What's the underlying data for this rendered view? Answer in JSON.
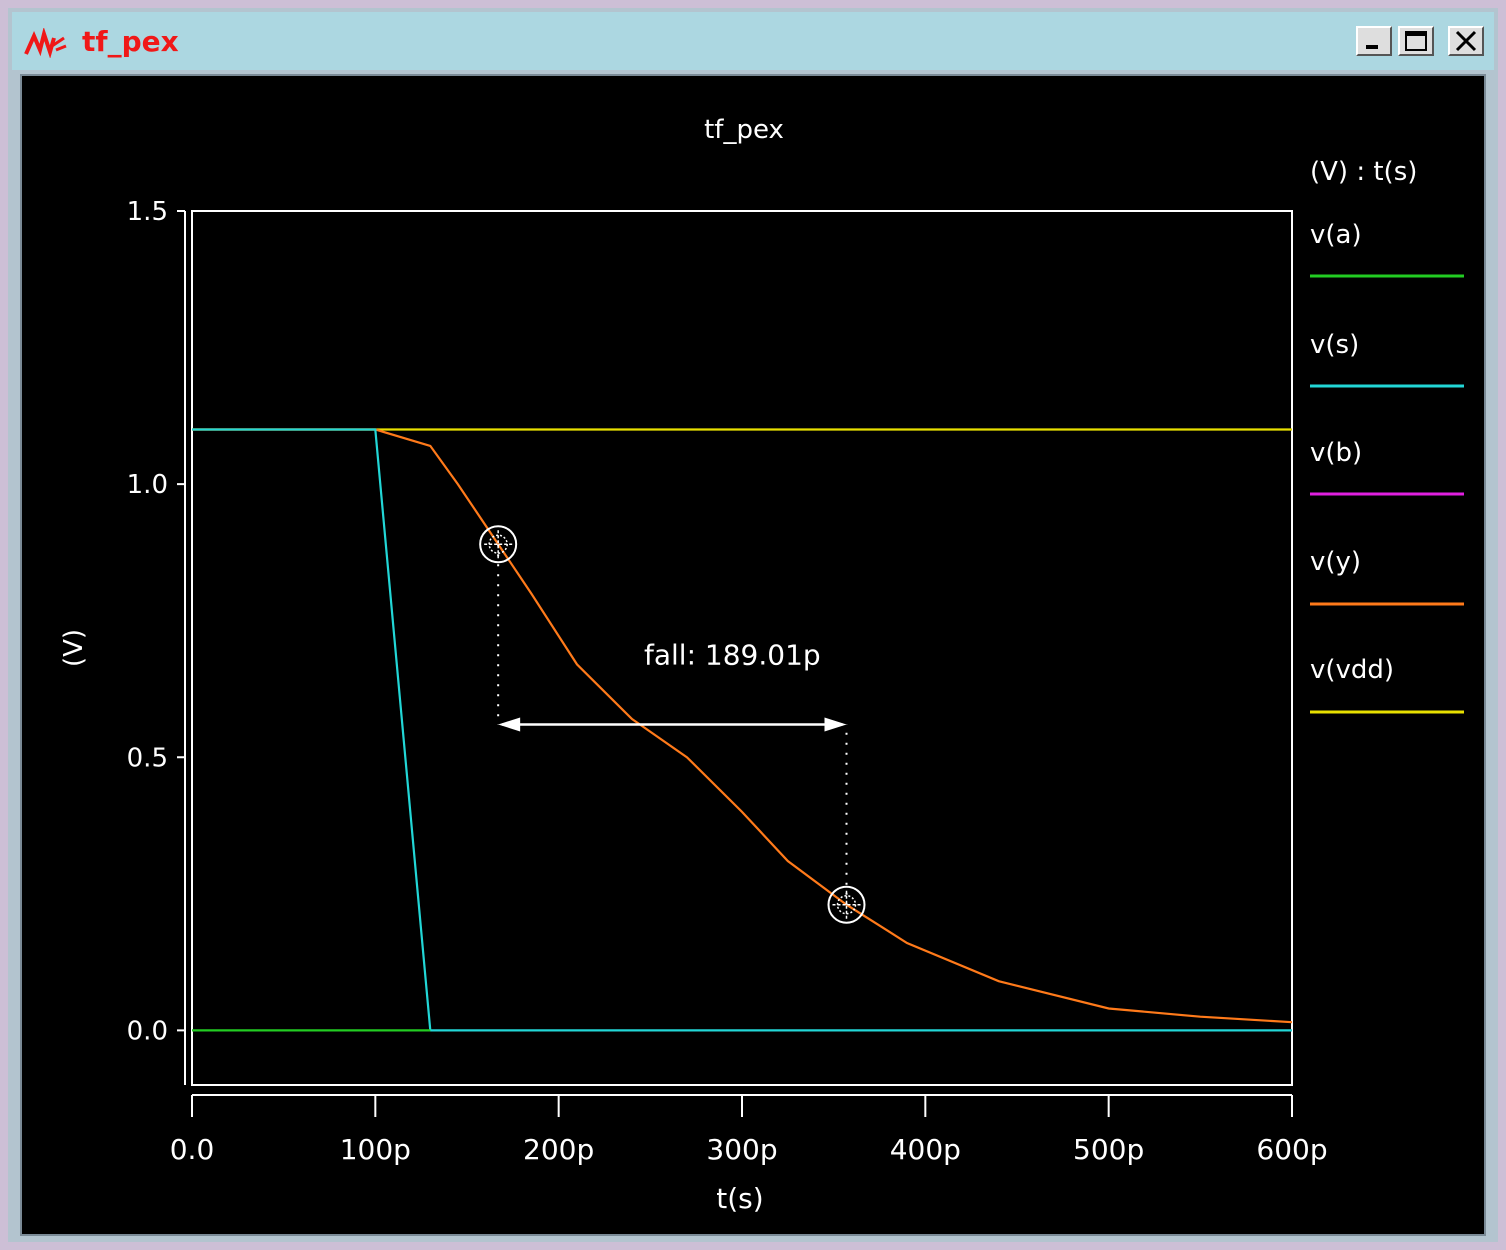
{
  "window": {
    "title": "tf_pex",
    "title_color": "#f01818",
    "titlebar_color": "#acd7e1",
    "icon": "waveform-app-icon",
    "controls": [
      "minimize-icon",
      "maximize-icon",
      "close-icon"
    ]
  },
  "chart_data": {
    "type": "line",
    "title": "tf_pex",
    "xlabel": "t(s)",
    "ylabel": "(V)",
    "legend_header": "(V) : t(s)",
    "legend_position": "right",
    "background": "#000000",
    "xlim": [
      0,
      600
    ],
    "ylim": [
      -0.1,
      1.5
    ],
    "x_ticks": [
      {
        "value": 0,
        "label": "0.0"
      },
      {
        "value": 100,
        "label": "100p"
      },
      {
        "value": 200,
        "label": "200p"
      },
      {
        "value": 300,
        "label": "300p"
      },
      {
        "value": 400,
        "label": "400p"
      },
      {
        "value": 500,
        "label": "500p"
      },
      {
        "value": 600,
        "label": "600p"
      }
    ],
    "y_ticks": [
      {
        "value": 0.0,
        "label": "0.0"
      },
      {
        "value": 0.5,
        "label": "0.5"
      },
      {
        "value": 1.0,
        "label": "1.0"
      },
      {
        "value": 1.5,
        "label": "1.5"
      }
    ],
    "series": [
      {
        "name": "v(a)",
        "color": "#22cc22",
        "x": [
          0,
          130
        ],
        "y": [
          0,
          0
        ]
      },
      {
        "name": "v(s)",
        "color": "#22d6d6",
        "x": [
          0,
          100,
          130,
          600
        ],
        "y": [
          1.1,
          1.1,
          0,
          0
        ]
      },
      {
        "name": "v(b)",
        "color": "#e020e0",
        "x": [],
        "y": []
      },
      {
        "name": "v(y)",
        "color": "#ff7a1a",
        "x": [
          0,
          100,
          130,
          145,
          167,
          185,
          210,
          240,
          270,
          300,
          325,
          357,
          390,
          440,
          500,
          550,
          600
        ],
        "y": [
          1.1,
          1.1,
          1.07,
          1.0,
          0.89,
          0.8,
          0.67,
          0.57,
          0.5,
          0.4,
          0.31,
          0.23,
          0.16,
          0.09,
          0.04,
          0.025,
          0.015
        ]
      },
      {
        "name": "v(vdd)",
        "color": "#e8e000",
        "x": [
          0,
          600
        ],
        "y": [
          1.1,
          1.1
        ]
      }
    ],
    "annotation": {
      "label": "fall: 189.01p",
      "x_start": 167,
      "x_end": 357,
      "y_start": 0.89,
      "y_end": 0.23,
      "arrow_y": 0.56
    }
  }
}
